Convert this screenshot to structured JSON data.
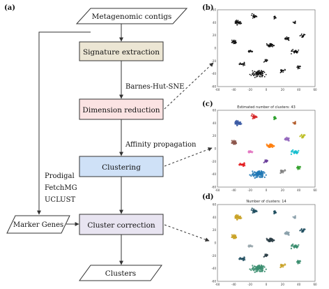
{
  "panel_labels": {
    "a": "(a)",
    "b": "(b)",
    "c": "(c)",
    "d": "(d)"
  },
  "flow": {
    "input": "Metagenomic contigs",
    "signature": "Signature extraction",
    "dimension": "Dimension reduction",
    "clustering": "Clustering",
    "correction": "Cluster correction",
    "output": "Clusters",
    "marker": "Marker Genes"
  },
  "edge_labels": {
    "barnes": "Barnes-Hut-SNE",
    "affinity": "Affinity propagation",
    "tools": [
      "Prodigal",
      "FetchMG",
      "UCLUST"
    ]
  },
  "plots": {
    "c_title": "Estimated number of clusters: 43",
    "d_title": "Number of clusters: 14",
    "x_ticks": [
      "-60",
      "-40",
      "-20",
      "0",
      "20",
      "40",
      "60"
    ],
    "y_ticks": [
      "60",
      "40",
      "20",
      "0",
      "-20",
      "-40",
      "-60"
    ]
  },
  "colors": {
    "signature_fill": "#ece6d4",
    "dimension_fill": "#fbe3e3",
    "clustering_fill": "#cfe1f7",
    "correction_fill": "#e8e4f1",
    "line": "#333333"
  }
}
